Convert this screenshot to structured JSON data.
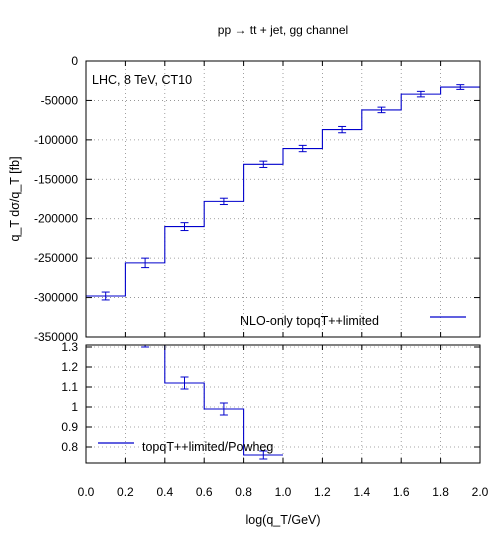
{
  "chart_data": [
    {
      "type": "line",
      "title": "pp → tt + jet, gg channel",
      "ylabel": "q_T dσ/q_T [fb]",
      "annotation": "LHC, 8 TeV, CT10",
      "ylim": [
        -350000,
        0
      ],
      "yticks": [
        0,
        -50000,
        -100000,
        -150000,
        -200000,
        -250000,
        -300000,
        -350000
      ],
      "ytick_labels": [
        "0",
        "-50000",
        "-100000",
        "-150000",
        "-200000",
        "-250000",
        "-300000",
        "-350000"
      ],
      "xlim": [
        0,
        2
      ],
      "grid": true,
      "legend_position": "bottom-right",
      "series": [
        {
          "name": "NLO-only topqT++limited",
          "color": "#0000cc",
          "bin_edges": [
            0,
            0.2,
            0.4,
            0.6,
            0.8,
            1.0,
            1.2,
            1.4,
            1.6,
            1.8,
            2.0
          ],
          "values": [
            -298000,
            -256000,
            -210000,
            -178000,
            -131000,
            -111000,
            -87000,
            -62000,
            -42000,
            -33000
          ],
          "errors": [
            5000,
            6000,
            5000,
            4000,
            4000,
            4000,
            4000,
            3500,
            3500,
            3000
          ]
        }
      ]
    },
    {
      "type": "line",
      "xlabel": "log(q_T/GeV)",
      "xlim": [
        0,
        2
      ],
      "xticks": [
        0,
        0.2,
        0.4,
        0.6,
        0.8,
        1.0,
        1.2,
        1.4,
        1.6,
        1.8,
        2.0
      ],
      "xtick_labels": [
        "0.0",
        "0.2",
        "0.4",
        "0.6",
        "0.8",
        "1.0",
        "1.2",
        "1.4",
        "1.6",
        "1.8",
        "2.0"
      ],
      "ylim": [
        0.72,
        1.31
      ],
      "yticks": [
        0.8,
        0.9,
        1.0,
        1.1,
        1.2,
        1.3
      ],
      "ytick_labels": [
        "0.8",
        "0.9",
        "1",
        "1.1",
        "1.2",
        "1.3"
      ],
      "grid": true,
      "legend_position": "bottom-left",
      "series": [
        {
          "name": "topqT++limited/Powheg",
          "color": "#0000cc",
          "bin_edges": [
            0.2,
            0.4,
            0.6,
            0.8,
            1.0
          ],
          "values": [
            1.32,
            1.12,
            0.99,
            0.76
          ],
          "errors": [
            0.02,
            0.03,
            0.03,
            0.02
          ]
        }
      ]
    }
  ]
}
